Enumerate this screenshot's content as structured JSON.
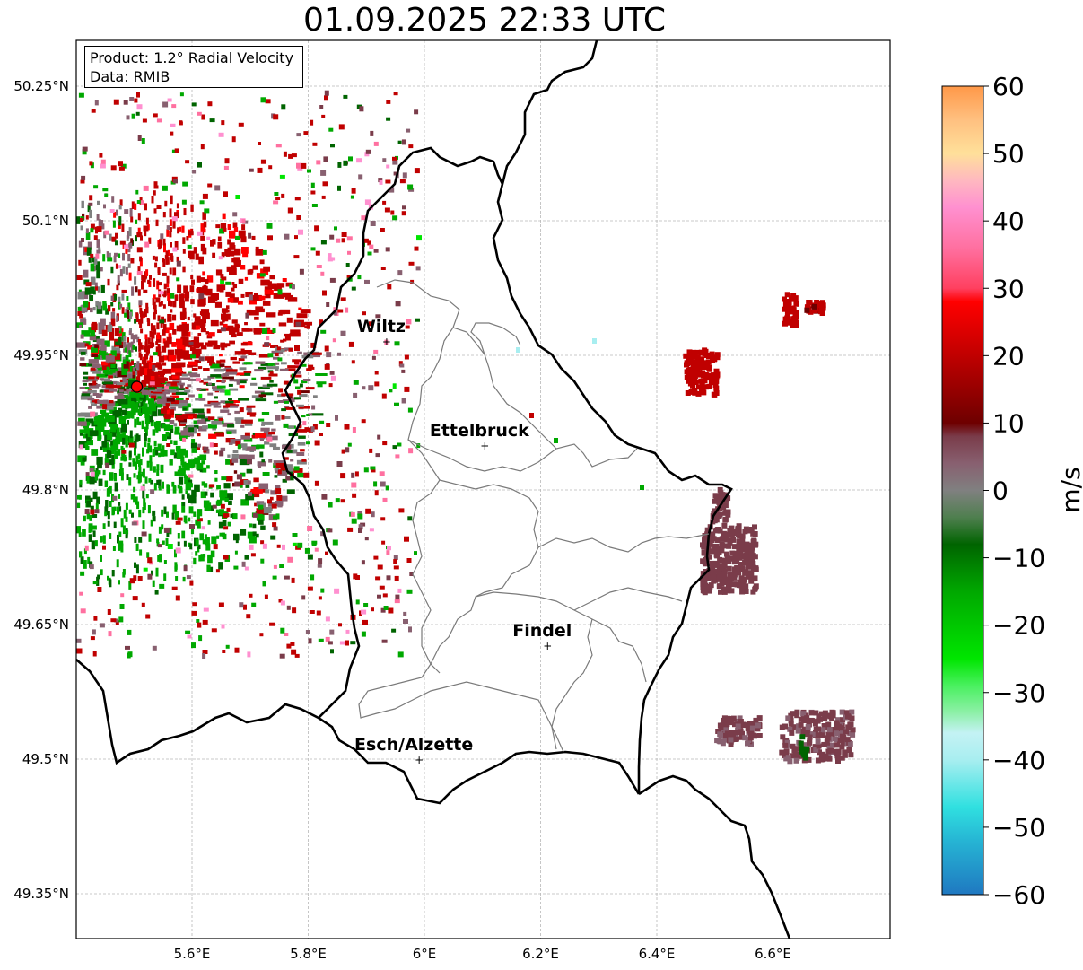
{
  "title": "01.09.2025 22:33 UTC",
  "info": {
    "product": "Product: 1.2° Radial Velocity",
    "source": "Data: RMIB"
  },
  "map": {
    "lon_range": [
      5.4,
      6.8
    ],
    "lat_range": [
      49.3,
      50.3
    ],
    "lon_ticks": [
      {
        "value": 5.6,
        "label": "5.6°E"
      },
      {
        "value": 5.8,
        "label": "5.8°E"
      },
      {
        "value": 6.0,
        "label": "6°E"
      },
      {
        "value": 6.2,
        "label": "6.2°E"
      },
      {
        "value": 6.4,
        "label": "6.4°E"
      },
      {
        "value": 6.6,
        "label": "6.6°E"
      }
    ],
    "lat_ticks": [
      {
        "value": 50.25,
        "label": "50.25°N"
      },
      {
        "value": 50.1,
        "label": "50.1°N"
      },
      {
        "value": 49.95,
        "label": "49.95°N"
      },
      {
        "value": 49.8,
        "label": "49.8°N"
      },
      {
        "value": 49.65,
        "label": "49.65°N"
      },
      {
        "value": 49.5,
        "label": "49.5°N"
      },
      {
        "value": 49.35,
        "label": "49.35°N"
      }
    ],
    "grid": true,
    "radar_site": {
      "lon": 5.505,
      "lat": 49.915,
      "color": "#ff0000"
    },
    "cities": [
      {
        "name": "Wiltz",
        "lon": 5.935,
        "lat": 49.966
      },
      {
        "name": "Ettelbruck",
        "lon": 6.104,
        "lat": 49.85
      },
      {
        "name": "Findel",
        "lon": 6.212,
        "lat": 49.627
      },
      {
        "name": "Esch/Alzette",
        "lon": 5.991,
        "lat": 49.5
      }
    ]
  },
  "colorbar": {
    "label": "m/s",
    "range": [
      -60,
      60
    ],
    "ticks": [
      {
        "value": 60,
        "label": "60"
      },
      {
        "value": 50,
        "label": "50"
      },
      {
        "value": 40,
        "label": "40"
      },
      {
        "value": 30,
        "label": "30"
      },
      {
        "value": 20,
        "label": "20"
      },
      {
        "value": 10,
        "label": "10"
      },
      {
        "value": 0,
        "label": "0"
      },
      {
        "value": -10,
        "label": "−10"
      },
      {
        "value": -20,
        "label": "−20"
      },
      {
        "value": -30,
        "label": "−30"
      },
      {
        "value": -40,
        "label": "−40"
      },
      {
        "value": -50,
        "label": "−50"
      },
      {
        "value": -60,
        "label": "−60"
      }
    ],
    "stops": [
      {
        "value": -60,
        "color": "#1f78c1"
      },
      {
        "value": -52,
        "color": "#26b5d4"
      },
      {
        "value": -47,
        "color": "#30e0e0"
      },
      {
        "value": -40,
        "color": "#a8eef0"
      },
      {
        "value": -36,
        "color": "#c4f2f4"
      },
      {
        "value": -33,
        "color": "#8ef0a8"
      },
      {
        "value": -29,
        "color": "#4af060"
      },
      {
        "value": -25,
        "color": "#00e600"
      },
      {
        "value": -15,
        "color": "#00a800"
      },
      {
        "value": -8,
        "color": "#006400"
      },
      {
        "value": -4,
        "color": "#4f7f4f"
      },
      {
        "value": 0,
        "color": "#808080"
      },
      {
        "value": 4,
        "color": "#886070"
      },
      {
        "value": 8,
        "color": "#7a3c4a"
      },
      {
        "value": 10,
        "color": "#6e0000"
      },
      {
        "value": 20,
        "color": "#c00000"
      },
      {
        "value": 28,
        "color": "#ff0000"
      },
      {
        "value": 30,
        "color": "#ff4060"
      },
      {
        "value": 36,
        "color": "#ff70a0"
      },
      {
        "value": 42,
        "color": "#ff90d0"
      },
      {
        "value": 46,
        "color": "#ffb8c0"
      },
      {
        "value": 50,
        "color": "#ffe09a"
      },
      {
        "value": 55,
        "color": "#ffc080"
      },
      {
        "value": 60,
        "color": "#ff9848"
      }
    ]
  }
}
